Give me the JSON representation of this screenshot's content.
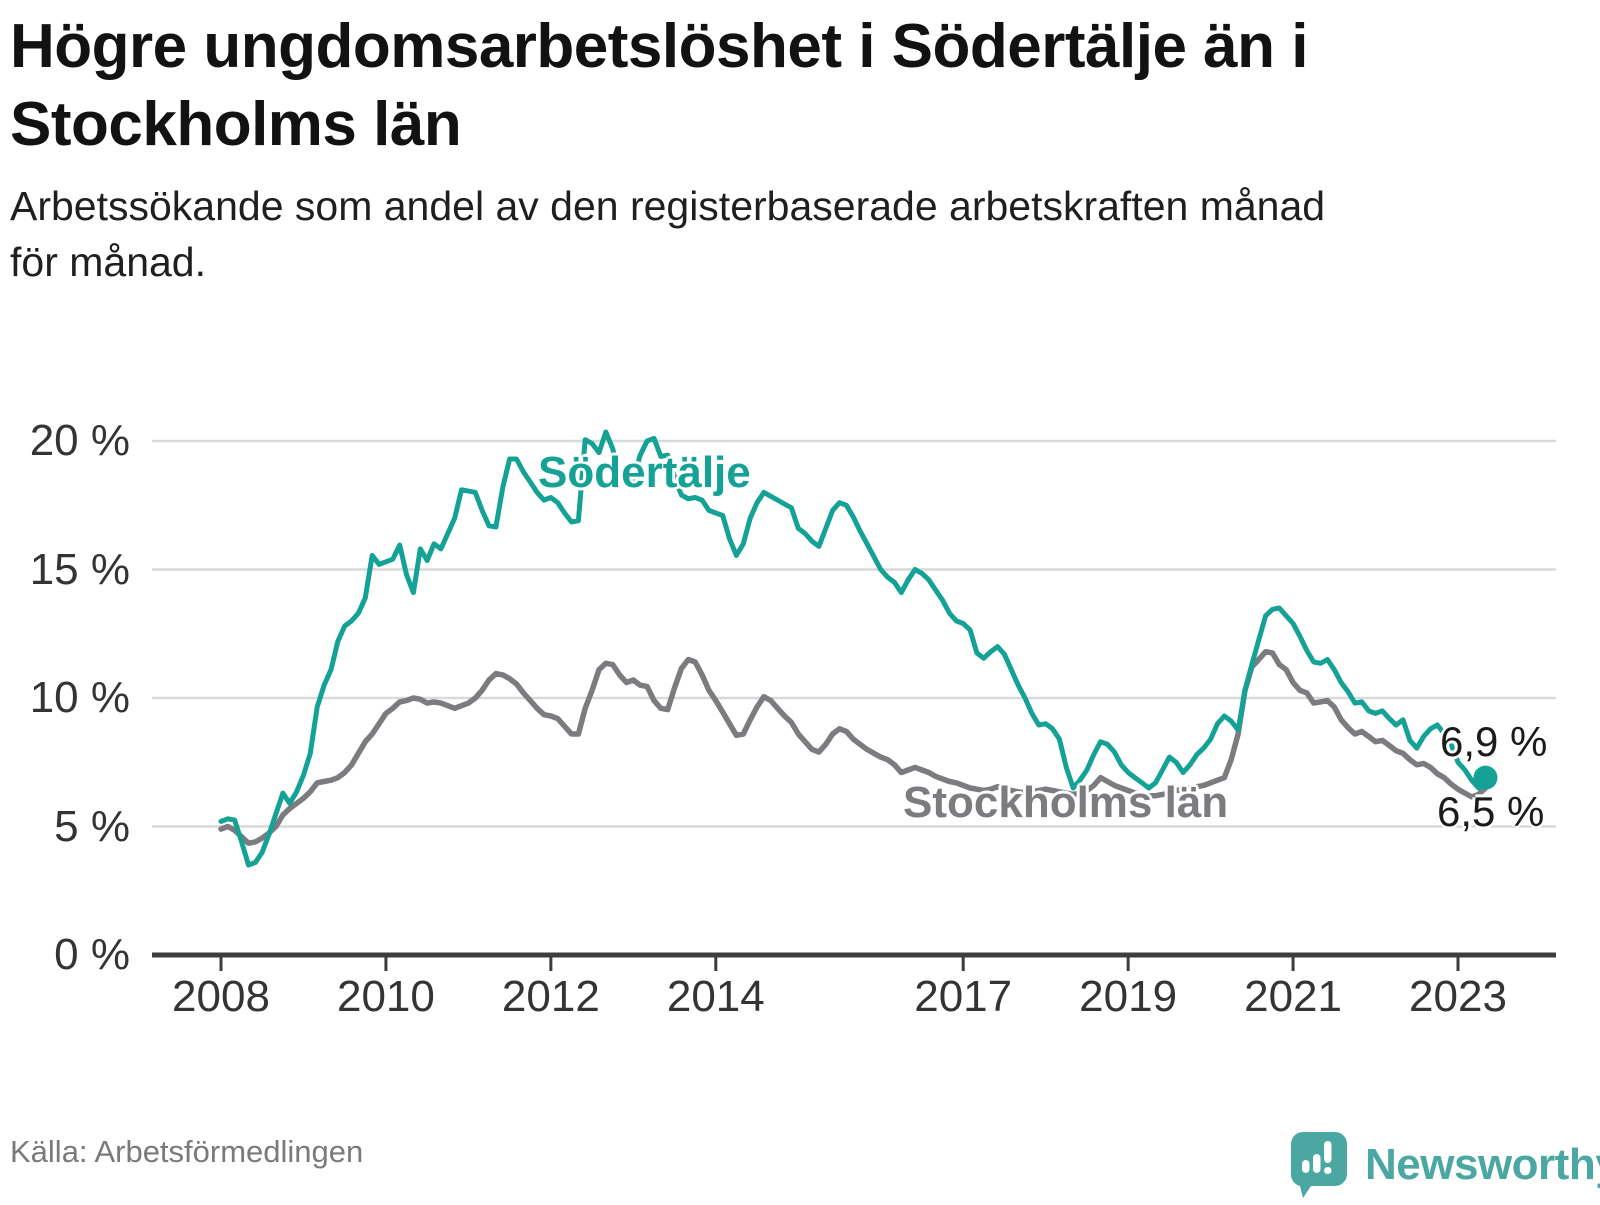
{
  "header": {
    "title": "Högre ungdomsarbetslöshet i Södertälje än i\nStockholms län",
    "subtitle": "Arbetssökande som andel av den registerbaserade arbetskraften månad\nför månad."
  },
  "chart_data": {
    "type": "line",
    "title": "Högre ungdomsarbetslöshet i Södertälje än i Stockholms län",
    "xlabel": "",
    "ylabel": "",
    "x_unit": "month",
    "x_start": "2008-01",
    "x_end": "2023-05",
    "ylim": [
      0,
      20
    ],
    "grid": "horizontal",
    "y_ticks": [
      0,
      5,
      10,
      15,
      20
    ],
    "y_tick_labels": [
      "0 %",
      "5 %",
      "10 %",
      "15 %",
      "20 %"
    ],
    "x_tick_years": [
      2008,
      2010,
      2012,
      2014,
      2017,
      2019,
      2021,
      2023
    ],
    "x_tick_labels": [
      "2008",
      "2010",
      "2012",
      "2014",
      "2017",
      "2019",
      "2021",
      "2023"
    ],
    "series": [
      {
        "name": "Södertälje",
        "color": "#15a296",
        "end_label": "6,9 %",
        "end_marker": true,
        "values": [
          5.2,
          5.3,
          5.25,
          4.4,
          3.5,
          3.6,
          4.0,
          4.7,
          5.5,
          6.3,
          5.9,
          6.35,
          7.0,
          7.85,
          9.65,
          10.5,
          11.1,
          12.2,
          12.8,
          13.0,
          13.3,
          13.9,
          15.55,
          15.2,
          15.3,
          15.4,
          15.95,
          14.8,
          14.1,
          15.8,
          15.35,
          16.0,
          15.8,
          16.4,
          17.0,
          18.1,
          18.05,
          18.0,
          17.3,
          16.7,
          16.65,
          18.2,
          19.3,
          19.3,
          18.8,
          18.4,
          18.0,
          17.7,
          17.8,
          17.6,
          17.2,
          16.85,
          16.9,
          20.05,
          19.9,
          19.55,
          20.35,
          19.7,
          18.6,
          18.3,
          18.5,
          19.45,
          20.0,
          20.1,
          19.4,
          19.45,
          18.6,
          17.9,
          17.75,
          17.8,
          17.7,
          17.3,
          17.2,
          17.1,
          16.2,
          15.55,
          16.0,
          17.0,
          17.6,
          18.0,
          17.85,
          17.7,
          17.55,
          17.4,
          16.6,
          16.4,
          16.1,
          15.9,
          16.6,
          17.3,
          17.6,
          17.5,
          17.05,
          16.5,
          16.0,
          15.5,
          15.0,
          14.7,
          14.5,
          14.1,
          14.6,
          15.0,
          14.85,
          14.6,
          14.2,
          13.8,
          13.3,
          13.0,
          12.9,
          12.65,
          11.75,
          11.55,
          11.8,
          12.0,
          11.7,
          11.1,
          10.5,
          10.0,
          9.4,
          8.95,
          9.0,
          8.8,
          8.4,
          7.3,
          6.5,
          6.8,
          7.2,
          7.8,
          8.3,
          8.2,
          7.9,
          7.4,
          7.1,
          6.9,
          6.7,
          6.5,
          6.7,
          7.2,
          7.7,
          7.5,
          7.1,
          7.4,
          7.8,
          8.05,
          8.4,
          9.0,
          9.3,
          9.1,
          8.75,
          10.3,
          11.3,
          12.25,
          13.2,
          13.45,
          13.5,
          13.2,
          12.9,
          12.4,
          11.85,
          11.4,
          11.35,
          11.5,
          11.1,
          10.6,
          10.25,
          9.8,
          9.85,
          9.5,
          9.4,
          9.5,
          9.2,
          8.95,
          9.15,
          8.35,
          8.05,
          8.5,
          8.8,
          8.95,
          8.6,
          8.2,
          7.5,
          7.2,
          6.8,
          6.5,
          6.9
        ]
      },
      {
        "name": "Stockholms län",
        "color": "#7c7c80",
        "end_label": "6,5 %",
        "end_marker": false,
        "values": [
          4.9,
          5.0,
          4.85,
          4.6,
          4.35,
          4.4,
          4.55,
          4.75,
          5.0,
          5.45,
          5.7,
          5.9,
          6.1,
          6.35,
          6.7,
          6.75,
          6.8,
          6.9,
          7.1,
          7.4,
          7.85,
          8.3,
          8.6,
          9.0,
          9.4,
          9.6,
          9.85,
          9.9,
          10.0,
          9.95,
          9.8,
          9.85,
          9.8,
          9.7,
          9.6,
          9.7,
          9.8,
          10.0,
          10.3,
          10.7,
          10.95,
          10.9,
          10.75,
          10.55,
          10.2,
          9.9,
          9.6,
          9.35,
          9.3,
          9.2,
          8.9,
          8.6,
          8.6,
          9.6,
          10.3,
          11.1,
          11.35,
          11.3,
          10.9,
          10.6,
          10.7,
          10.5,
          10.45,
          9.9,
          9.6,
          9.55,
          10.4,
          11.15,
          11.5,
          11.4,
          10.9,
          10.3,
          9.9,
          9.45,
          9.0,
          8.55,
          8.6,
          9.15,
          9.65,
          10.05,
          9.9,
          9.6,
          9.3,
          9.05,
          8.6,
          8.3,
          8.0,
          7.9,
          8.2,
          8.6,
          8.8,
          8.7,
          8.4,
          8.2,
          8.0,
          7.85,
          7.7,
          7.6,
          7.4,
          7.1,
          7.2,
          7.3,
          7.2,
          7.1,
          6.95,
          6.85,
          6.75,
          6.7,
          6.6,
          6.5,
          6.45,
          6.4,
          6.45,
          6.55,
          6.5,
          6.4,
          6.35,
          6.3,
          6.35,
          6.4,
          6.45,
          6.4,
          6.35,
          6.3,
          6.25,
          6.3,
          6.4,
          6.6,
          6.9,
          6.75,
          6.6,
          6.5,
          6.4,
          6.3,
          6.25,
          6.2,
          6.2,
          6.25,
          6.3,
          6.4,
          6.45,
          6.5,
          6.55,
          6.6,
          6.7,
          6.8,
          6.9,
          7.6,
          8.6,
          10.3,
          11.2,
          11.5,
          11.8,
          11.75,
          11.3,
          11.1,
          10.6,
          10.3,
          10.2,
          9.8,
          9.85,
          9.9,
          9.65,
          9.15,
          8.85,
          8.6,
          8.7,
          8.5,
          8.3,
          8.35,
          8.15,
          7.95,
          7.85,
          7.6,
          7.4,
          7.45,
          7.3,
          7.05,
          6.9,
          6.65,
          6.45,
          6.3,
          6.15,
          6.25,
          6.5
        ]
      }
    ]
  },
  "footer": {
    "source": "Källa: Arbetsförmedlingen",
    "brand": "Newsworthy"
  }
}
